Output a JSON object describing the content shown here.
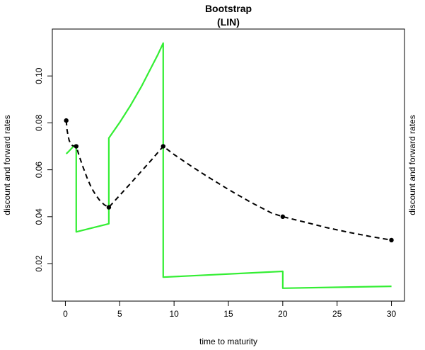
{
  "chart_data": {
    "type": "line",
    "title": "Bootstrap",
    "subtitle": "(LIN)",
    "xlabel": "time to maturity",
    "ylabel": "discount and forward rates",
    "ylabel_right": "discount and forward rates",
    "xlim": [
      -1.2,
      31.2
    ],
    "ylim": [
      0.004,
      0.12
    ],
    "x_ticks": [
      0,
      5,
      10,
      15,
      20,
      25,
      30
    ],
    "x_tick_labels": [
      "0",
      "5",
      "10",
      "15",
      "20",
      "25",
      "30"
    ],
    "y_ticks": [
      0.02,
      0.04,
      0.06,
      0.08,
      0.1
    ],
    "y_tick_labels": [
      "0.02",
      "0.04",
      "0.06",
      "0.08",
      "0.10"
    ],
    "grid": false,
    "series": [
      {
        "role": "discount rate curve",
        "style": "dashed",
        "color": "#000000",
        "x": [
          0.08,
          0.15,
          0.25,
          0.35,
          0.5,
          0.65,
          0.8,
          1.0,
          1.3,
          1.6,
          2.0,
          2.4,
          2.8,
          3.2,
          3.6,
          4.0,
          5.0,
          6.0,
          7.0,
          8.0,
          9.0,
          10.0,
          11.5,
          13.0,
          15.0,
          17.0,
          19.0,
          20.0,
          22.0,
          24.0,
          26.0,
          28.0,
          30.0
        ],
        "y": [
          0.081,
          0.077,
          0.0745,
          0.0725,
          0.071,
          0.0703,
          0.0701,
          0.07,
          0.0655,
          0.0615,
          0.0565,
          0.0523,
          0.0492,
          0.0467,
          0.045,
          0.044,
          0.0491,
          0.0542,
          0.0594,
          0.0646,
          0.07,
          0.0665,
          0.0618,
          0.0573,
          0.0516,
          0.0463,
          0.0415,
          0.04,
          0.0377,
          0.0354,
          0.0334,
          0.0316,
          0.03
        ]
      },
      {
        "role": "forward rate curve",
        "style": "solid",
        "color": "#33ee33",
        "x": [
          0.08,
          0.3,
          0.55,
          0.75,
          0.9,
          1.0,
          1.0,
          4.0,
          4.0,
          5.0,
          6.0,
          7.0,
          8.0,
          8.5,
          9.0,
          9.0,
          20.0,
          20.0,
          30.0
        ],
        "y": [
          0.0668,
          0.0678,
          0.069,
          0.07,
          0.0705,
          0.0703,
          0.0335,
          0.037,
          0.0735,
          0.0802,
          0.0875,
          0.0955,
          0.1045,
          0.109,
          0.114,
          0.0142,
          0.0167,
          0.0095,
          0.0103
        ]
      }
    ],
    "markers": {
      "x": [
        0.08,
        1.0,
        4.0,
        9.0,
        20.0,
        30.0
      ],
      "y": [
        0.081,
        0.07,
        0.044,
        0.07,
        0.04,
        0.03
      ]
    }
  }
}
